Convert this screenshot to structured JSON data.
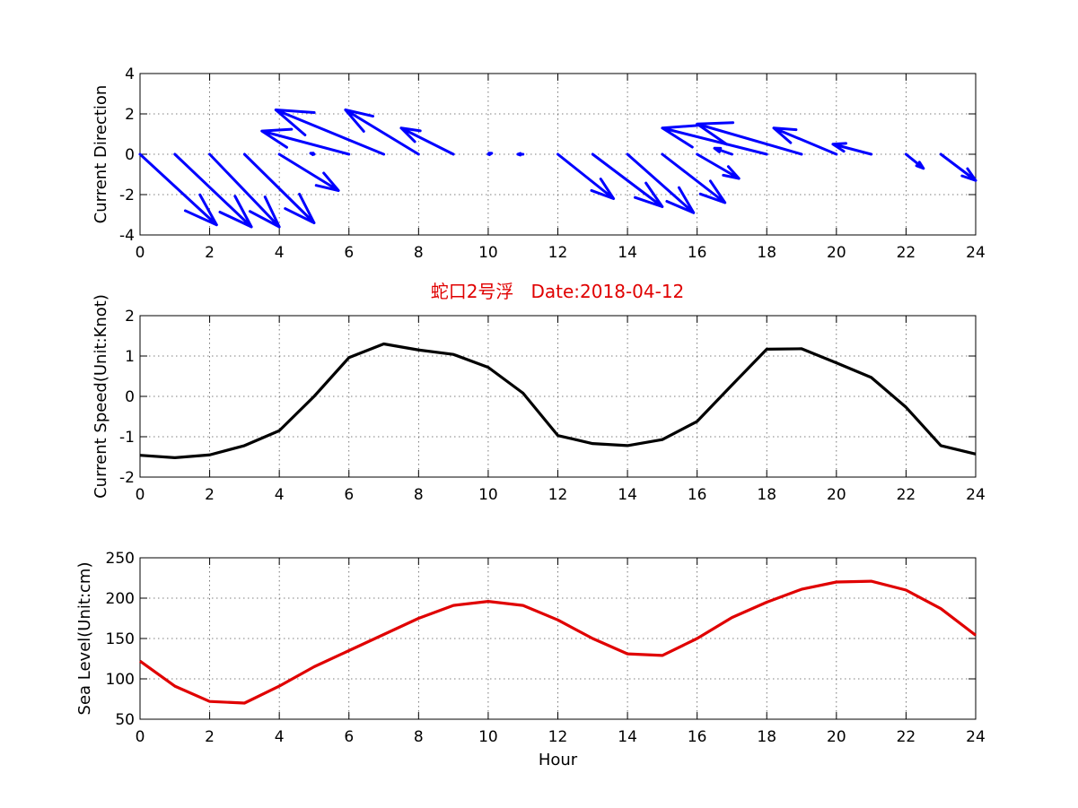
{
  "chart_data": [
    {
      "type": "quiver",
      "xlabel": "",
      "ylabel": "Current Direction",
      "xlim": [
        0,
        24
      ],
      "ylim": [
        -4,
        4
      ],
      "xticks": [
        0,
        2,
        4,
        6,
        8,
        10,
        12,
        14,
        16,
        18,
        20,
        22,
        24
      ],
      "yticks": [
        -4,
        -2,
        0,
        2,
        4
      ],
      "grid": true,
      "color": "#0000ff",
      "vectors": [
        {
          "x": 0,
          "u": 2.2,
          "v": -3.5
        },
        {
          "x": 1,
          "u": 2.2,
          "v": -3.6
        },
        {
          "x": 2,
          "u": 2.0,
          "v": -3.6
        },
        {
          "x": 3,
          "u": 2.0,
          "v": -3.4
        },
        {
          "x": 4,
          "u": 1.7,
          "v": -1.8
        },
        {
          "x": 5,
          "u": -0.1,
          "v": 0.05
        },
        {
          "x": 6,
          "u": -2.5,
          "v": 1.15
        },
        {
          "x": 7,
          "u": -3.1,
          "v": 2.2
        },
        {
          "x": 8,
          "u": -2.1,
          "v": 2.2
        },
        {
          "x": 9,
          "u": -1.5,
          "v": 1.3
        },
        {
          "x": 10,
          "u": 0.1,
          "v": 0.05
        },
        {
          "x": 11,
          "u": -0.15,
          "v": 0.0
        },
        {
          "x": 12,
          "u": 1.6,
          "v": -2.2
        },
        {
          "x": 13,
          "u": 2.0,
          "v": -2.6
        },
        {
          "x": 14,
          "u": 1.9,
          "v": -2.9
        },
        {
          "x": 15,
          "u": 1.8,
          "v": -2.4
        },
        {
          "x": 16,
          "u": 1.2,
          "v": -1.2
        },
        {
          "x": 17,
          "u": -0.5,
          "v": 0.3
        },
        {
          "x": 18,
          "u": -3.0,
          "v": 1.3
        },
        {
          "x": 19,
          "u": -3.0,
          "v": 1.5
        },
        {
          "x": 20,
          "u": -1.8,
          "v": 1.3
        },
        {
          "x": 21,
          "u": -1.1,
          "v": 0.5
        },
        {
          "x": 22,
          "u": 0.5,
          "v": -0.7
        },
        {
          "x": 23,
          "u": 1.0,
          "v": -1.3
        }
      ]
    },
    {
      "type": "line",
      "title": "蛇口2号浮   Date:2018-04-12",
      "xlabel": "",
      "ylabel": "Current Speed(Unit:Knot)",
      "xlim": [
        0,
        24
      ],
      "ylim": [
        -2,
        2
      ],
      "xticks": [
        0,
        2,
        4,
        6,
        8,
        10,
        12,
        14,
        16,
        18,
        20,
        22,
        24
      ],
      "yticks": [
        -2,
        -1,
        0,
        1,
        2
      ],
      "grid": true,
      "color": "#000000",
      "x": [
        0,
        1,
        2,
        3,
        4,
        5,
        6,
        7,
        8,
        9,
        10,
        11,
        12,
        13,
        14,
        15,
        16,
        17,
        18,
        19,
        20,
        21,
        22,
        23,
        24
      ],
      "y": [
        -1.46,
        -1.52,
        -1.45,
        -1.22,
        -0.85,
        0.0,
        0.96,
        1.3,
        1.15,
        1.04,
        0.72,
        0.08,
        -0.97,
        -1.17,
        -1.22,
        -1.07,
        -0.62,
        0.28,
        1.17,
        1.18,
        0.83,
        0.47,
        -0.27,
        -1.22,
        -1.43
      ]
    },
    {
      "type": "line",
      "xlabel": "Hour",
      "ylabel": "Sea Level(Unit:cm)",
      "xlim": [
        0,
        24
      ],
      "ylim": [
        50,
        250
      ],
      "xticks": [
        0,
        2,
        4,
        6,
        8,
        10,
        12,
        14,
        16,
        18,
        20,
        22,
        24
      ],
      "yticks": [
        50,
        100,
        150,
        200,
        250
      ],
      "grid": true,
      "color": "#e00000",
      "x": [
        0,
        1,
        2,
        3,
        4,
        5,
        6,
        7,
        8,
        9,
        10,
        11,
        12,
        13,
        14,
        15,
        16,
        17,
        18,
        19,
        20,
        21,
        22,
        23,
        24
      ],
      "y": [
        122,
        91,
        72,
        70,
        91,
        115,
        135,
        155,
        175,
        191,
        196,
        191,
        173,
        150,
        131,
        129,
        150,
        176,
        195,
        211,
        220,
        221,
        210,
        187,
        154
      ]
    }
  ]
}
